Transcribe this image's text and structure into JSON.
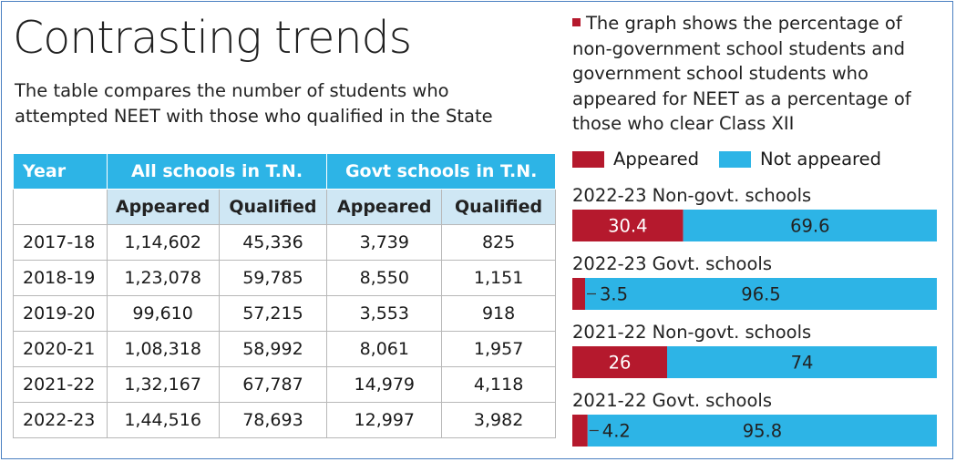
{
  "title": "Contrasting trends",
  "subtitle": "The table compares the number of students who attempted NEET with those who qualified in the State",
  "table": {
    "year_header": "Year",
    "group_headers": [
      "All schools in T.N.",
      "Govt schools in T.N."
    ],
    "sub_headers": [
      "Appeared",
      "Qualified",
      "Appeared",
      "Qualified"
    ],
    "rows": [
      [
        "2017-18",
        "1,14,602",
        "45,336",
        "3,739",
        "825"
      ],
      [
        "2018-19",
        "1,23,078",
        "59,785",
        "8,550",
        "1,151"
      ],
      [
        "2019-20",
        "99,610",
        "57,215",
        "3,553",
        "918"
      ],
      [
        "2020-21",
        "1,08,318",
        "58,992",
        "8,061",
        "1,957"
      ],
      [
        "2021-22",
        "1,32,167",
        "67,787",
        "14,979",
        "4,118"
      ],
      [
        "2022-23",
        "1,44,516",
        "78,693",
        "12,997",
        "3,982"
      ]
    ]
  },
  "note": "The graph shows the percentage of non-government school students and government school students who appeared for NEET as a percentage of those who clear Class XII",
  "colors": {
    "appeared": "#b5192d",
    "not_appeared": "#2db4e6",
    "header_blue": "#2db4e6",
    "subheader_bg": "#cfe7f4"
  },
  "chart_data": {
    "type": "bar",
    "orientation": "horizontal",
    "stacked": true,
    "legend": [
      "Appeared",
      "Not appeared"
    ],
    "legend_position": "top",
    "xlim": [
      0,
      100
    ],
    "categories": [
      "2022-23 Non-govt. schools",
      "2022-23 Govt. schools",
      "2021-22 Non-govt. schools",
      "2021-22 Govt. schools"
    ],
    "series": [
      {
        "name": "Appeared",
        "values": [
          30.4,
          3.5,
          26,
          4.2
        ],
        "labels": [
          "30.4",
          "3.5",
          "26",
          "4.2"
        ]
      },
      {
        "name": "Not appeared",
        "values": [
          69.6,
          96.5,
          74,
          95.8
        ],
        "labels": [
          "69.6",
          "96.5",
          "74",
          "95.8"
        ]
      }
    ]
  }
}
